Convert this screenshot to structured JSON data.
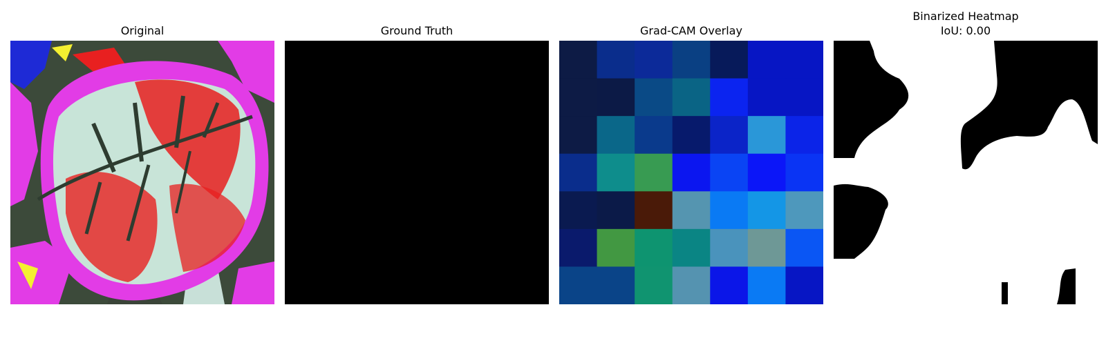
{
  "panels": {
    "original": {
      "title": "Original"
    },
    "ground_truth": {
      "title": "Ground Truth"
    },
    "gradcam": {
      "title": "Grad-CAM Overlay",
      "grid_size": 7,
      "cells": [
        [
          "#0d1b45",
          "#0a2d8c",
          "#0c2a99",
          "#0a4083",
          "#071a5a",
          "#0716c4",
          "#0716c4"
        ],
        [
          "#0d1b45",
          "#0c1a46",
          "#0a4a86",
          "#0a6485",
          "#0b24f0",
          "#0716c4",
          "#0716c4"
        ],
        [
          "#0d1b45",
          "#0a6789",
          "#0a3a8c",
          "#071a6c",
          "#0b24c8",
          "#2a97d8",
          "#0b24e8"
        ],
        [
          "#0a2d8c",
          "#0e8d8c",
          "#389b52",
          "#0b16f0",
          "#0a44f4",
          "#0b16f8",
          "#0a34f4"
        ],
        [
          "#0a1a50",
          "#0b1a48",
          "#4a1a08",
          "#5595b0",
          "#0a7af4",
          "#1496e6",
          "#4e98bc"
        ],
        [
          "#0a1a6c",
          "#429842",
          "#0e9470",
          "#0a8584",
          "#4a93bc",
          "#6e9896",
          "#0a56f4"
        ],
        [
          "#0a4488",
          "#0a4488",
          "#109470",
          "#5593b0",
          "#0b16e8",
          "#0a7af4",
          "#0716c4"
        ]
      ]
    },
    "binarized": {
      "title_line1": "Binarized Heatmap",
      "title_line2": "IoU: 0.00"
    }
  },
  "colors": {
    "ground_truth_fill": "#000000",
    "binary_foreground": "#ffffff",
    "binary_background": "#000000"
  }
}
